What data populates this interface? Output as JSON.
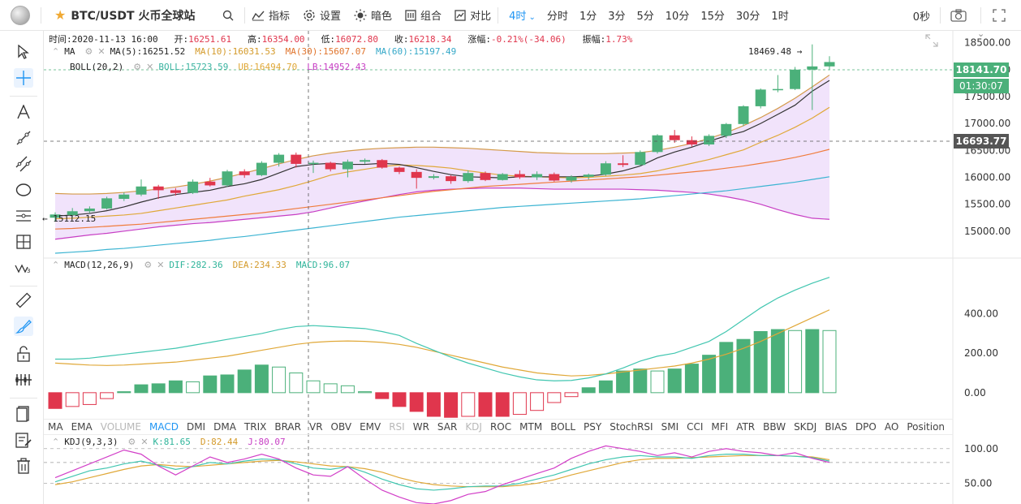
{
  "toolbar": {
    "symbol": "BTC/USDT 火币全球站",
    "indicators_label": "指标",
    "settings_label": "设置",
    "theme_label": "暗色",
    "combo_label": "组合",
    "compare_label": "对比",
    "periods": [
      "4时",
      "分时",
      "1分",
      "3分",
      "5分",
      "10分",
      "15分",
      "30分",
      "1时"
    ],
    "active_period": "4时",
    "countdown": "0秒"
  },
  "ohlc": {
    "time_label": "时间:",
    "time": "2020-11-13 16:00",
    "open_label": "开:",
    "open": "16251.61",
    "high_label": "高:",
    "high": "16354.00",
    "low_label": "低:",
    "low": "16072.80",
    "close_label": "收:",
    "close": "16218.34",
    "change_label": "涨幅:",
    "change": "-0.21%(-34.06)",
    "amplitude_label": "振幅:",
    "amplitude": "1.73%"
  },
  "legends": {
    "ma": {
      "name": "MA",
      "ma5": "MA(5):16251.52",
      "ma10": "MA(10):16031.53",
      "ma30": "MA(30):15607.07",
      "ma60": "MA(60):15197.49"
    },
    "boll": {
      "name": "BOLL(20,2)",
      "boll": "BOLL:15723.59",
      "ub": "UB:16494.70",
      "lb": "LB:14952.43"
    },
    "macd": {
      "name": "MACD(12,26,9)",
      "dif": "DIF:282.36",
      "dea": "DEA:234.33",
      "macd": "MACD:96.07"
    },
    "kdj": {
      "name": "KDJ(9,3,3)",
      "k": "K:81.65",
      "d": "D:82.44",
      "j": "J:80.07"
    }
  },
  "indicator_tabs": [
    "MA",
    "EMA",
    "VOLUME",
    "MACD",
    "DMI",
    "DMA",
    "TRIX",
    "BRAR",
    "VR",
    "OBV",
    "EMV",
    "RSI",
    "WR",
    "SAR",
    "KDJ",
    "ROC",
    "MTM",
    "BOLL",
    "PSY",
    "StochRSI",
    "SMI",
    "CCI",
    "MFI",
    "ATR",
    "BBW",
    "SKDJ",
    "BIAS",
    "DPO",
    "AO",
    "Position"
  ],
  "indicator_tabs_dim": [
    "VOLUME",
    "RSI",
    "KDJ"
  ],
  "indicator_tab_active": "MACD",
  "price_axis": {
    "last_price": "18141.70",
    "countdown": "01:30:07",
    "crosshair_price": "16693.77",
    "max_label": "18469.48 →",
    "min_label": "← 15112.15"
  },
  "colors": {
    "up": "#4bb07a",
    "down": "#e0364d",
    "ma5": "#333333",
    "ma10": "#e0a838",
    "ma30": "#f07c3c",
    "ma60": "#3cb4d2",
    "boll_mid": "#d49a4a",
    "boll_band": "#c73ec4",
    "boll_fill": "#f1e3fb",
    "dif": "#41c6b0",
    "dea": "#e0a838",
    "k": "#41c6b0",
    "d": "#e0a838",
    "j": "#d23fc8",
    "accent": "#2196f3"
  },
  "chart_data": [
    {
      "type": "candlestick",
      "title": "BTC/USDT 4H",
      "ylim": [
        14500,
        18600
      ],
      "yticks": [
        14500,
        15000,
        15500,
        16000,
        16500,
        17000,
        17500,
        18000,
        18500
      ],
      "candles": [
        [
          15250,
          15310,
          15180,
          15350
        ],
        [
          15300,
          15370,
          15260,
          15430
        ],
        [
          15370,
          15420,
          15340,
          15460
        ],
        [
          15420,
          15610,
          15400,
          15640
        ],
        [
          15600,
          15680,
          15560,
          15720
        ],
        [
          15680,
          15830,
          15650,
          15960
        ],
        [
          15830,
          15760,
          15600,
          15860
        ],
        [
          15760,
          15710,
          15660,
          15800
        ],
        [
          15710,
          15920,
          15690,
          15960
        ],
        [
          15920,
          15850,
          15830,
          15990
        ],
        [
          15850,
          16110,
          15820,
          16140
        ],
        [
          16110,
          16040,
          15990,
          16150
        ],
        [
          16040,
          16270,
          16020,
          16300
        ],
        [
          16270,
          16420,
          16200,
          16450
        ],
        [
          16420,
          16250,
          16180,
          16460
        ],
        [
          16250,
          16270,
          16080,
          16310
        ],
        [
          16270,
          16150,
          16110,
          16290
        ],
        [
          16150,
          16290,
          16000,
          16330
        ],
        [
          16290,
          16320,
          16250,
          16350
        ],
        [
          16320,
          16180,
          16160,
          16340
        ],
        [
          16180,
          16100,
          16060,
          16200
        ],
        [
          16100,
          15990,
          15790,
          16150
        ],
        [
          15990,
          16020,
          15960,
          16060
        ],
        [
          16020,
          15930,
          15880,
          16040
        ],
        [
          15930,
          16080,
          15900,
          16130
        ],
        [
          16080,
          15950,
          15930,
          16110
        ],
        [
          15950,
          16060,
          15940,
          16080
        ],
        [
          16060,
          16000,
          15970,
          16130
        ],
        [
          16000,
          16060,
          15950,
          16110
        ],
        [
          16060,
          15940,
          15920,
          16090
        ],
        [
          15940,
          16010,
          15900,
          16040
        ],
        [
          16010,
          16050,
          15960,
          16070
        ],
        [
          16050,
          16260,
          16030,
          16300
        ],
        [
          16260,
          16230,
          16190,
          16410
        ],
        [
          16230,
          16470,
          16210,
          16500
        ],
        [
          16470,
          16780,
          16440,
          16800
        ],
        [
          16780,
          16690,
          16640,
          16880
        ],
        [
          16690,
          16610,
          16570,
          16760
        ],
        [
          16610,
          16770,
          16580,
          16800
        ],
        [
          16770,
          16990,
          16730,
          17010
        ],
        [
          16990,
          17320,
          16950,
          17340
        ],
        [
          17320,
          17630,
          17280,
          17650
        ],
        [
          17630,
          17640,
          17580,
          17900
        ],
        [
          17640,
          18000,
          17620,
          18050
        ],
        [
          18000,
          18060,
          17250,
          18469
        ],
        [
          18060,
          18141,
          18000,
          18250
        ]
      ],
      "ma5": [
        15280,
        15300,
        15330,
        15380,
        15450,
        15540,
        15620,
        15680,
        15720,
        15760,
        15830,
        15880,
        15960,
        16080,
        16200,
        16240,
        16260,
        16240,
        16240,
        16260,
        16240,
        16180,
        16110,
        16050,
        16010,
        16000,
        15990,
        16010,
        16010,
        16010,
        16010,
        16020,
        16060,
        16120,
        16210,
        16360,
        16470,
        16560,
        16670,
        16770,
        16850,
        17000,
        17170,
        17340,
        17600,
        17800
      ],
      "ma10": [
        15230,
        15240,
        15260,
        15280,
        15300,
        15330,
        15380,
        15430,
        15480,
        15530,
        15580,
        15650,
        15710,
        15770,
        15850,
        15940,
        16040,
        16100,
        16150,
        16200,
        16230,
        16220,
        16200,
        16170,
        16120,
        16080,
        16040,
        16020,
        16010,
        16000,
        15990,
        16000,
        16020,
        16040,
        16070,
        16120,
        16190,
        16260,
        16330,
        16420,
        16510,
        16650,
        16780,
        16930,
        17100,
        17300
      ],
      "ma30": [
        15040,
        15050,
        15070,
        15090,
        15110,
        15130,
        15160,
        15190,
        15220,
        15250,
        15280,
        15310,
        15340,
        15380,
        15420,
        15460,
        15500,
        15540,
        15580,
        15620,
        15660,
        15700,
        15740,
        15770,
        15800,
        15830,
        15850,
        15870,
        15890,
        15910,
        15930,
        15950,
        15970,
        15990,
        16010,
        16040,
        16070,
        16100,
        16130,
        16170,
        16210,
        16260,
        16310,
        16370,
        16440,
        16520
      ],
      "ma60": [
        14590,
        14610,
        14630,
        14660,
        14680,
        14710,
        14740,
        14770,
        14800,
        14830,
        14870,
        14900,
        14940,
        14980,
        15020,
        15060,
        15100,
        15140,
        15180,
        15220,
        15260,
        15290,
        15320,
        15350,
        15380,
        15410,
        15440,
        15460,
        15480,
        15500,
        15520,
        15540,
        15560,
        15580,
        15600,
        15630,
        15660,
        15690,
        15720,
        15750,
        15790,
        15830,
        15870,
        15910,
        15960,
        16010
      ],
      "boll_mid": [
        15270,
        15290,
        15310,
        15330,
        15360,
        15400,
        15440,
        15490,
        15540,
        15590,
        15640,
        15700,
        15750,
        15810,
        15870,
        15930,
        15980,
        16030,
        16080,
        16120,
        16150,
        16170,
        16170,
        16160,
        16150,
        16140,
        16120,
        16100,
        16080,
        16070,
        16060,
        16060,
        16060,
        16070,
        16080,
        16100,
        16130,
        16170,
        16210,
        16260,
        16330,
        16420,
        16520,
        16630,
        16760,
        16900
      ],
      "boll_ub": [
        15700,
        15690,
        15690,
        15700,
        15720,
        15750,
        15780,
        15820,
        15870,
        15930,
        16000,
        16080,
        16160,
        16250,
        16330,
        16400,
        16450,
        16490,
        16520,
        16540,
        16550,
        16560,
        16560,
        16550,
        16540,
        16520,
        16500,
        16480,
        16460,
        16450,
        16440,
        16440,
        16440,
        16450,
        16460,
        16500,
        16560,
        16630,
        16720,
        16830,
        16960,
        17110,
        17280,
        17470,
        17680,
        17900
      ],
      "boll_lb": [
        14850,
        14890,
        14930,
        14960,
        15000,
        15040,
        15080,
        15110,
        15140,
        15160,
        15190,
        15220,
        15250,
        15280,
        15310,
        15360,
        15430,
        15500,
        15560,
        15620,
        15680,
        15730,
        15760,
        15780,
        15790,
        15800,
        15800,
        15800,
        15790,
        15780,
        15780,
        15780,
        15780,
        15780,
        15770,
        15760,
        15740,
        15720,
        15690,
        15640,
        15580,
        15500,
        15400,
        15310,
        15240,
        15220
      ]
    },
    {
      "type": "macd",
      "ylim": [
        -120,
        600
      ],
      "yticks": [
        0,
        200,
        400
      ],
      "dif": [
        170,
        170,
        175,
        185,
        195,
        205,
        215,
        225,
        240,
        255,
        270,
        285,
        300,
        320,
        335,
        340,
        335,
        330,
        325,
        310,
        290,
        250,
        215,
        180,
        150,
        125,
        100,
        80,
        65,
        60,
        62,
        75,
        95,
        125,
        160,
        185,
        200,
        230,
        260,
        310,
        370,
        430,
        480,
        520,
        555,
        585
      ],
      "dea": [
        150,
        145,
        140,
        138,
        140,
        145,
        150,
        155,
        165,
        175,
        185,
        200,
        215,
        230,
        245,
        255,
        260,
        262,
        260,
        255,
        245,
        230,
        210,
        190,
        170,
        150,
        130,
        115,
        100,
        92,
        85,
        88,
        95,
        105,
        115,
        125,
        135,
        150,
        170,
        195,
        225,
        260,
        300,
        340,
        380,
        420
      ],
      "hist": [
        -80,
        -70,
        -60,
        -30,
        5,
        40,
        45,
        60,
        55,
        85,
        90,
        115,
        140,
        130,
        100,
        60,
        45,
        35,
        5,
        -30,
        -70,
        -95,
        -120,
        -125,
        -120,
        -120,
        -120,
        -110,
        -90,
        -50,
        -20,
        25,
        60,
        110,
        120,
        110,
        120,
        145,
        190,
        255,
        270,
        310,
        320,
        315,
        320,
        315
      ]
    },
    {
      "type": "kdj",
      "ylim": [
        20,
        115
      ],
      "yticks": [
        50,
        100
      ],
      "k": [
        52,
        60,
        68,
        72,
        78,
        82,
        76,
        70,
        74,
        80,
        78,
        82,
        85,
        84,
        78,
        72,
        70,
        74,
        66,
        56,
        48,
        42,
        40,
        42,
        45,
        46,
        46,
        50,
        56,
        62,
        70,
        78,
        84,
        88,
        90,
        88,
        88,
        86,
        90,
        92,
        92,
        90,
        90,
        89,
        87,
        82
      ],
      "d": [
        48,
        52,
        58,
        64,
        70,
        75,
        77,
        75,
        74,
        76,
        78,
        80,
        82,
        83,
        81,
        78,
        75,
        74,
        71,
        66,
        58,
        52,
        48,
        46,
        45,
        45,
        45,
        47,
        50,
        55,
        62,
        68,
        74,
        80,
        84,
        86,
        86,
        87,
        88,
        89,
        90,
        90,
        90,
        89,
        88,
        84
      ],
      "j": [
        58,
        68,
        78,
        88,
        98,
        92,
        75,
        62,
        75,
        88,
        80,
        85,
        92,
        85,
        72,
        62,
        60,
        74,
        56,
        40,
        30,
        22,
        20,
        25,
        34,
        38,
        48,
        56,
        64,
        72,
        86,
        96,
        104,
        100,
        96,
        90,
        94,
        88,
        96,
        100,
        96,
        94,
        90,
        94,
        86,
        80
      ]
    }
  ]
}
